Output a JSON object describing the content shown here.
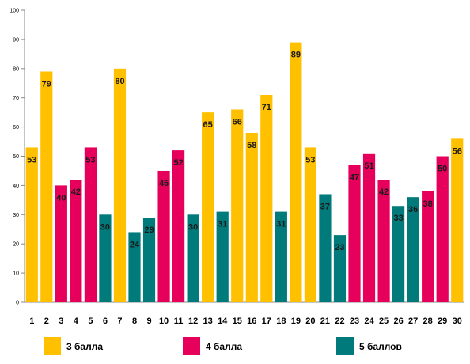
{
  "chart_data": {
    "type": "bar",
    "categories": [
      "1",
      "2",
      "3",
      "4",
      "5",
      "6",
      "7",
      "8",
      "9",
      "10",
      "11",
      "12",
      "13",
      "14",
      "15",
      "16",
      "17",
      "18",
      "19",
      "20",
      "21",
      "22",
      "23",
      "24",
      "25",
      "26",
      "27",
      "28",
      "29",
      "30"
    ],
    "values": [
      53,
      79,
      40,
      42,
      53,
      30,
      80,
      24,
      29,
      45,
      52,
      30,
      65,
      31,
      66,
      58,
      71,
      31,
      89,
      53,
      37,
      23,
      47,
      51,
      42,
      33,
      36,
      38,
      50,
      56
    ],
    "groups": [
      "3 балла",
      "3 балла",
      "4 балла",
      "4 балла",
      "4 балла",
      "5 баллов",
      "3 балла",
      "5 баллов",
      "5 баллов",
      "4 балла",
      "4 балла",
      "5 баллов",
      "3 балла",
      "5 баллов",
      "3 балла",
      "3 балла",
      "3 балла",
      "5 баллов",
      "3 балла",
      "3 балла",
      "5 баллов",
      "5 баллов",
      "4 балла",
      "4 балла",
      "4 балла",
      "5 баллов",
      "5 баллов",
      "4 балла",
      "4 балла",
      "3 балла"
    ],
    "legend": [
      {
        "name": "3 балла",
        "color": "#FFC000"
      },
      {
        "name": "4 балла",
        "color": "#E6005C"
      },
      {
        "name": "5 баллов",
        "color": "#007A7A"
      }
    ],
    "ylim": [
      0,
      100
    ],
    "yticks": [
      "0",
      "10",
      "20",
      "30",
      "40",
      "50",
      "60",
      "70",
      "80",
      "90",
      "100"
    ],
    "grid": false,
    "legend_position": "bottom",
    "title": "",
    "xlabel": "",
    "ylabel": ""
  }
}
